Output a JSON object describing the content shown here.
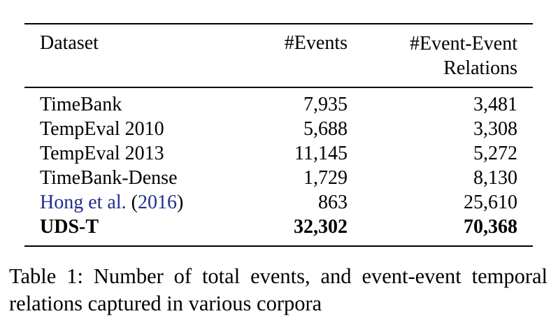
{
  "table": {
    "headers": {
      "dataset": "Dataset",
      "events": "#Events",
      "relations_line1": "#Event-Event",
      "relations_line2": "Relations"
    },
    "rows": [
      {
        "dataset": "TimeBank",
        "events": "7,935",
        "relations": "3,481"
      },
      {
        "dataset": "TempEval 2010",
        "events": "5,688",
        "relations": "3,308"
      },
      {
        "dataset": "TempEval 2013",
        "events": "11,145",
        "relations": "5,272"
      },
      {
        "dataset": "TimeBank-Dense",
        "events": "1,729",
        "relations": "8,130"
      },
      {
        "dataset_author": "Hong et al.",
        "dataset_year_open": "(",
        "dataset_year": "2016",
        "dataset_year_close": ")",
        "events": "863",
        "relations": "25,610"
      },
      {
        "dataset": "UDS-T",
        "events": "32,302",
        "relations": "70,368"
      }
    ]
  },
  "caption": "Table 1: Number of total events, and event-event temporal relations captured in various corpora",
  "colors": {
    "link": "#1f2f8f",
    "text": "#000000"
  }
}
